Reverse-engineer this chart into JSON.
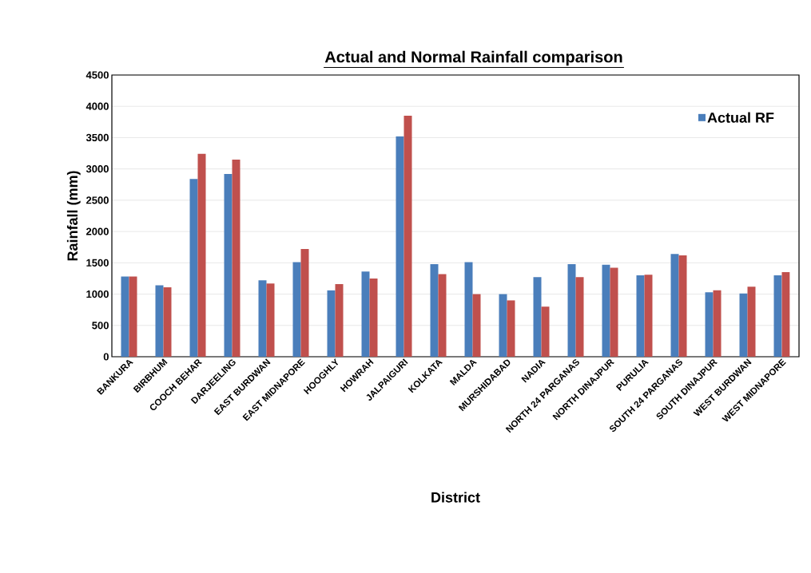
{
  "chart_data": {
    "type": "bar",
    "title": "Actual and Normal Rainfall comparison",
    "xlabel": "District",
    "ylabel": "Rainfall (mm)",
    "categories": [
      "BANKURA",
      "BIRBHUM",
      "COOCH BEHAR",
      "DARJEELING",
      "EAST BURDWAN",
      "EAST MIDNAPORE",
      "HOOGHLY",
      "HOWRAH",
      "JALPAIGURI",
      "KOLKATA",
      "MALDA",
      "MURSHIDABAD",
      "NADIA",
      "NORTH 24 PARGANAS",
      "NORTH DINAJPUR",
      "PURULIA",
      "SOUTH 24 PARGANAS",
      "SOUTH DINAJPUR",
      "WEST BURDWAN",
      "WEST MIDNAPORE"
    ],
    "series": [
      {
        "name": "Actual RF",
        "color": "#4a7ebb",
        "values": [
          1280,
          1140,
          2840,
          2920,
          1220,
          1510,
          1060,
          1360,
          3520,
          1480,
          1510,
          1000,
          1270,
          1480,
          1470,
          1300,
          1640,
          1030,
          1010,
          1300
        ]
      },
      {
        "color": "#c0504d",
        "values": [
          1280,
          1110,
          3240,
          3150,
          1170,
          1720,
          1160,
          1250,
          3850,
          1320,
          1000,
          900,
          800,
          1270,
          1420,
          1310,
          1620,
          1060,
          1120,
          1350
        ]
      }
    ],
    "ylim": [
      0,
      4500
    ],
    "yticks": [
      0,
      500,
      1000,
      1500,
      2000,
      2500,
      3000,
      3500,
      4000,
      4500
    ],
    "grid": "y",
    "legend": "top right"
  }
}
